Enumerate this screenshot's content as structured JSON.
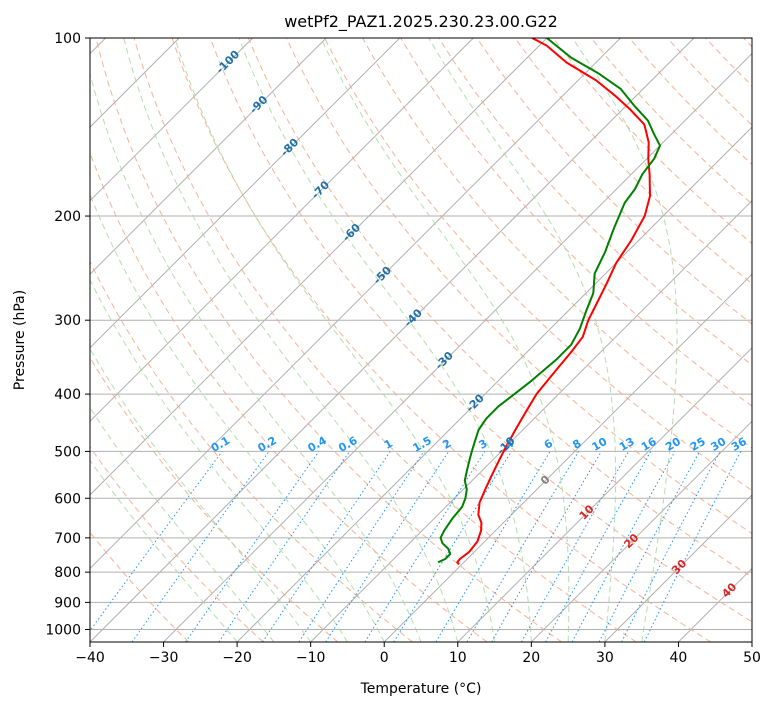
{
  "chart_data": {
    "type": "skew-t",
    "title": "wetPf2_PAZ1.2025.230.23.00.G22",
    "xlabel": "Temperature (°C)",
    "ylabel": "Pressure (hPa)",
    "xlim": [
      -40,
      50
    ],
    "ylim": [
      1050,
      100
    ],
    "y_scale": "log",
    "x_ticks": [
      "−40",
      "−30",
      "−20",
      "−10",
      "0",
      "10",
      "20",
      "30",
      "40",
      "50"
    ],
    "y_ticks": [
      "100",
      "200",
      "300",
      "400",
      "500",
      "600",
      "700",
      "800",
      "900",
      "1000"
    ],
    "grid": true,
    "series": [
      {
        "role": "temperature",
        "color": "#ff0000",
        "points": [
          [
            776,
            -0.4
          ],
          [
            770,
            -0.9
          ],
          [
            760,
            -1.0
          ],
          [
            740,
            -0.7
          ],
          [
            710,
            -1.0
          ],
          [
            680,
            -2.0
          ],
          [
            660,
            -3.0
          ],
          [
            640,
            -4.5
          ],
          [
            610,
            -6.0
          ],
          [
            580,
            -7.0
          ],
          [
            550,
            -8.0
          ],
          [
            520,
            -9.0
          ],
          [
            490,
            -10.0
          ],
          [
            460,
            -11.0
          ],
          [
            430,
            -12.0
          ],
          [
            400,
            -13.0
          ],
          [
            370,
            -13.5
          ],
          [
            340,
            -14.0
          ],
          [
            320,
            -14.5
          ],
          [
            300,
            -16.0
          ],
          [
            280,
            -17.2
          ],
          [
            260,
            -18.5
          ],
          [
            240,
            -20.0
          ],
          [
            220,
            -21.0
          ],
          [
            200,
            -22.5
          ],
          [
            185,
            -24.5
          ],
          [
            170,
            -27.5
          ],
          [
            160,
            -29.8
          ],
          [
            150,
            -32.0
          ],
          [
            140,
            -35.0
          ],
          [
            132,
            -39.0
          ],
          [
            125,
            -43.0
          ],
          [
            118,
            -47.5
          ],
          [
            110,
            -54.0
          ],
          [
            103,
            -59.0
          ],
          [
            100,
            -62.0
          ]
        ]
      },
      {
        "role": "dewpoint",
        "color": "#008000",
        "points": [
          [
            770,
            -3.5
          ],
          [
            760,
            -3.0
          ],
          [
            745,
            -3.0
          ],
          [
            730,
            -4.0
          ],
          [
            715,
            -5.5
          ],
          [
            700,
            -6.5
          ],
          [
            680,
            -7.0
          ],
          [
            650,
            -7.5
          ],
          [
            620,
            -7.8
          ],
          [
            600,
            -8.5
          ],
          [
            580,
            -9.5
          ],
          [
            560,
            -11.0
          ],
          [
            540,
            -12.0
          ],
          [
            520,
            -13.0
          ],
          [
            500,
            -14.0
          ],
          [
            480,
            -15.0
          ],
          [
            460,
            -16.0
          ],
          [
            440,
            -16.5
          ],
          [
            420,
            -16.5
          ],
          [
            400,
            -16.0
          ],
          [
            380,
            -15.5
          ],
          [
            350,
            -15.0
          ],
          [
            330,
            -15.0
          ],
          [
            310,
            -16.0
          ],
          [
            290,
            -17.5
          ],
          [
            270,
            -19.0
          ],
          [
            250,
            -21.5
          ],
          [
            230,
            -23.0
          ],
          [
            210,
            -25.0
          ],
          [
            190,
            -27.0
          ],
          [
            180,
            -27.5
          ],
          [
            170,
            -28.5
          ],
          [
            160,
            -29.0
          ],
          [
            152,
            -30.0
          ],
          [
            145,
            -32.5
          ],
          [
            138,
            -35.0
          ],
          [
            130,
            -39.0
          ],
          [
            122,
            -43.0
          ],
          [
            115,
            -48.0
          ],
          [
            108,
            -54.0
          ],
          [
            100,
            -60.0
          ]
        ]
      }
    ],
    "dry_adiabat_labels": [
      "-100",
      "-90",
      "-80",
      "-70",
      "-60",
      "-50",
      "-40",
      "-30",
      "-20",
      "-10",
      "0",
      "10",
      "20",
      "30",
      "40"
    ],
    "mixing_ratio_labels": [
      "0.1",
      "0.2",
      "0.4",
      "0.6",
      "1",
      "1.5",
      "2",
      "3",
      "4",
      "6",
      "8",
      "10",
      "13",
      "16",
      "20",
      "25",
      "30",
      "36"
    ],
    "colors": {
      "temperature": "#ff0000",
      "dewpoint": "#008000",
      "isotherm": "#b0b0b0",
      "dry_adiabat": "#f4a582",
      "moist_adiabat": "#a6d8a0",
      "mixing_ratio": "#2196f3",
      "cold_label": "#1f6fa8",
      "warm_label": "#d62728",
      "zero_label": "#808080"
    }
  }
}
